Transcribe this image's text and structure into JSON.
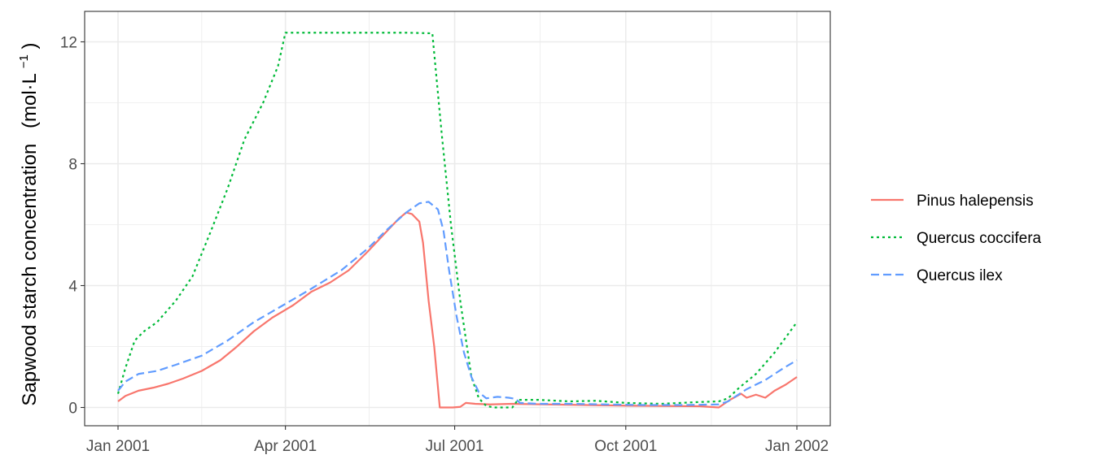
{
  "chart_data": {
    "type": "line",
    "title": "",
    "xlabel": "",
    "ylabel": "Sapwood starch concentration",
    "ylabel_unit_prefix": "(mol·L",
    "ylabel_unit_exp": "−1",
    "ylabel_unit_suffix": ")",
    "x_type": "date",
    "xlim": [
      "2001-01-01",
      "2002-01-01"
    ],
    "ylim": [
      -0.6,
      13
    ],
    "x_ticks": [
      {
        "date": "2001-01-01",
        "label": "Jan 2001"
      },
      {
        "date": "2001-04-01",
        "label": "Apr 2001"
      },
      {
        "date": "2001-07-01",
        "label": "Jul 2001"
      },
      {
        "date": "2001-10-01",
        "label": "Oct 2001"
      },
      {
        "date": "2002-01-01",
        "label": "Jan 2002"
      }
    ],
    "y_ticks": [
      {
        "value": 0,
        "label": "0"
      },
      {
        "value": 4,
        "label": "4"
      },
      {
        "value": 8,
        "label": "8"
      },
      {
        "value": 12,
        "label": "12"
      }
    ],
    "grid": true,
    "legend_position": "right",
    "series": [
      {
        "name": "Pinus halepensis",
        "color": "#F8766D",
        "dash": "solid",
        "points": [
          [
            "2001-01-01",
            0.2
          ],
          [
            "2001-01-05",
            0.38
          ],
          [
            "2001-01-12",
            0.55
          ],
          [
            "2001-01-20",
            0.65
          ],
          [
            "2001-01-28",
            0.78
          ],
          [
            "2001-02-05",
            0.95
          ],
          [
            "2001-02-15",
            1.2
          ],
          [
            "2001-02-25",
            1.55
          ],
          [
            "2001-03-05",
            1.95
          ],
          [
            "2001-03-15",
            2.5
          ],
          [
            "2001-03-25",
            2.95
          ],
          [
            "2001-04-05",
            3.35
          ],
          [
            "2001-04-15",
            3.8
          ],
          [
            "2001-04-25",
            4.1
          ],
          [
            "2001-05-05",
            4.5
          ],
          [
            "2001-05-15",
            5.1
          ],
          [
            "2001-05-25",
            5.75
          ],
          [
            "2001-06-01",
            6.2
          ],
          [
            "2001-06-05",
            6.4
          ],
          [
            "2001-06-08",
            6.35
          ],
          [
            "2001-06-12",
            6.1
          ],
          [
            "2001-06-14",
            5.4
          ],
          [
            "2001-06-17",
            3.5
          ],
          [
            "2001-06-20",
            2.0
          ],
          [
            "2001-06-23",
            0.0
          ],
          [
            "2001-06-26",
            0.0
          ],
          [
            "2001-06-30",
            0.0
          ],
          [
            "2001-07-04",
            0.02
          ],
          [
            "2001-07-07",
            0.15
          ],
          [
            "2001-07-12",
            0.12
          ],
          [
            "2001-07-20",
            0.1
          ],
          [
            "2001-08-01",
            0.12
          ],
          [
            "2001-08-20",
            0.1
          ],
          [
            "2001-09-10",
            0.08
          ],
          [
            "2001-10-01",
            0.06
          ],
          [
            "2001-10-20",
            0.05
          ],
          [
            "2001-11-10",
            0.04
          ],
          [
            "2001-11-20",
            0.0
          ],
          [
            "2001-11-26",
            0.25
          ],
          [
            "2001-12-02",
            0.45
          ],
          [
            "2001-12-05",
            0.32
          ],
          [
            "2001-12-10",
            0.42
          ],
          [
            "2001-12-15",
            0.32
          ],
          [
            "2001-12-20",
            0.55
          ],
          [
            "2001-12-26",
            0.75
          ],
          [
            "2002-01-01",
            1.0
          ]
        ]
      },
      {
        "name": "Quercus coccifera",
        "color": "#00BA38",
        "dash": "dotted",
        "points": [
          [
            "2001-01-01",
            0.45
          ],
          [
            "2001-01-05",
            1.3
          ],
          [
            "2001-01-10",
            2.2
          ],
          [
            "2001-01-15",
            2.5
          ],
          [
            "2001-01-22",
            2.8
          ],
          [
            "2001-02-01",
            3.5
          ],
          [
            "2001-02-10",
            4.3
          ],
          [
            "2001-02-20",
            5.8
          ],
          [
            "2001-03-01",
            7.2
          ],
          [
            "2001-03-10",
            8.8
          ],
          [
            "2001-03-20",
            10.0
          ],
          [
            "2001-03-28",
            11.2
          ],
          [
            "2001-04-01",
            12.3
          ],
          [
            "2001-04-15",
            12.3
          ],
          [
            "2001-05-01",
            12.3
          ],
          [
            "2001-05-20",
            12.3
          ],
          [
            "2001-06-05",
            12.3
          ],
          [
            "2001-06-19",
            12.28
          ],
          [
            "2001-06-24",
            9.0
          ],
          [
            "2001-06-29",
            6.0
          ],
          [
            "2001-07-04",
            3.5
          ],
          [
            "2001-07-10",
            1.0
          ],
          [
            "2001-07-14",
            0.3
          ],
          [
            "2001-07-18",
            0.05
          ],
          [
            "2001-07-22",
            0.0
          ],
          [
            "2001-07-26",
            0.0
          ],
          [
            "2001-08-01",
            0.0
          ],
          [
            "2001-08-04",
            0.25
          ],
          [
            "2001-08-15",
            0.25
          ],
          [
            "2001-09-01",
            0.2
          ],
          [
            "2001-09-15",
            0.22
          ],
          [
            "2001-10-01",
            0.15
          ],
          [
            "2001-10-20",
            0.12
          ],
          [
            "2001-11-10",
            0.18
          ],
          [
            "2001-11-20",
            0.2
          ],
          [
            "2001-11-25",
            0.3
          ],
          [
            "2001-12-01",
            0.65
          ],
          [
            "2001-12-10",
            1.1
          ],
          [
            "2001-12-20",
            1.8
          ],
          [
            "2002-01-01",
            2.8
          ]
        ]
      },
      {
        "name": "Quercus ilex",
        "color": "#619CFF",
        "dash": "dashed",
        "points": [
          [
            "2001-01-01",
            0.55
          ],
          [
            "2001-01-05",
            0.85
          ],
          [
            "2001-01-12",
            1.1
          ],
          [
            "2001-01-22",
            1.2
          ],
          [
            "2001-02-01",
            1.4
          ],
          [
            "2001-02-15",
            1.7
          ],
          [
            "2001-03-01",
            2.2
          ],
          [
            "2001-03-15",
            2.8
          ],
          [
            "2001-04-01",
            3.4
          ],
          [
            "2001-04-15",
            3.9
          ],
          [
            "2001-05-01",
            4.5
          ],
          [
            "2001-05-15",
            5.2
          ],
          [
            "2001-05-25",
            5.8
          ],
          [
            "2001-06-05",
            6.4
          ],
          [
            "2001-06-12",
            6.7
          ],
          [
            "2001-06-17",
            6.75
          ],
          [
            "2001-06-22",
            6.5
          ],
          [
            "2001-06-25",
            5.8
          ],
          [
            "2001-06-28",
            4.5
          ],
          [
            "2001-07-02",
            3.0
          ],
          [
            "2001-07-06",
            1.8
          ],
          [
            "2001-07-10",
            1.0
          ],
          [
            "2001-07-14",
            0.5
          ],
          [
            "2001-07-18",
            0.3
          ],
          [
            "2001-07-24",
            0.35
          ],
          [
            "2001-07-30",
            0.32
          ],
          [
            "2001-08-03",
            0.28
          ],
          [
            "2001-08-05",
            0.15
          ],
          [
            "2001-08-15",
            0.12
          ],
          [
            "2001-09-01",
            0.12
          ],
          [
            "2001-09-20",
            0.1
          ],
          [
            "2001-10-10",
            0.08
          ],
          [
            "2001-11-01",
            0.08
          ],
          [
            "2001-11-20",
            0.1
          ],
          [
            "2001-11-25",
            0.2
          ],
          [
            "2001-12-05",
            0.6
          ],
          [
            "2001-12-15",
            0.9
          ],
          [
            "2001-12-25",
            1.3
          ],
          [
            "2002-01-01",
            1.55
          ]
        ]
      }
    ]
  }
}
